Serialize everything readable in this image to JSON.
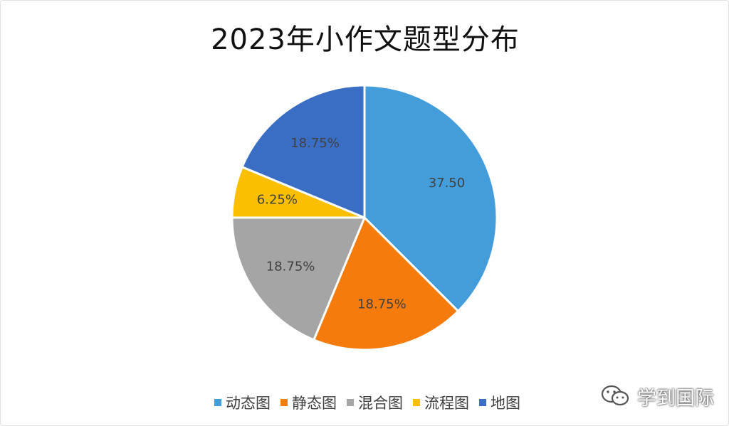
{
  "chart_data": {
    "type": "pie",
    "title": "2023年小作文题型分布",
    "categories": [
      "动态图",
      "静态图",
      "混合图",
      "流程图",
      "地图"
    ],
    "values": [
      37.5,
      18.75,
      18.75,
      6.25,
      18.75
    ],
    "data_labels": [
      "37.50",
      "18.75%",
      "18.75%",
      "6.25%",
      "18.75%"
    ],
    "colors": [
      "#449ddb",
      "#f57c0c",
      "#a5a5a5",
      "#fbbf00",
      "#3a6ec4"
    ],
    "start_angle": "12 o'clock",
    "direction": "clockwise",
    "legend_position": "bottom"
  },
  "watermark": {
    "text": "学到国际",
    "icon": "wechat-icon"
  }
}
